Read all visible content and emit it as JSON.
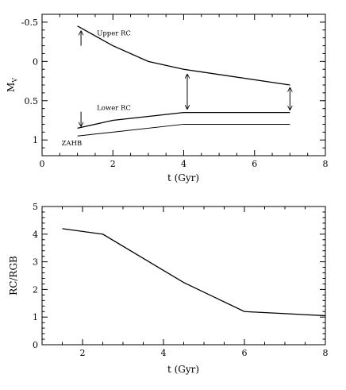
{
  "chart_data": [
    {
      "type": "line",
      "xlabel": "t (Gyr)",
      "ylabel": "M",
      "ylabel_sub": "V",
      "xlim": [
        0,
        8
      ],
      "ylim": [
        1.2,
        -0.6
      ],
      "y_inverted": true,
      "xticks": [
        0,
        2,
        4,
        6,
        8
      ],
      "xtick_labels": [
        "0",
        "2",
        "4",
        "6",
        "8"
      ],
      "yticks": [
        -0.5,
        0,
        0.5,
        1
      ],
      "ytick_labels": [
        "-0.5",
        "0",
        "0.5",
        "1"
      ],
      "series": [
        {
          "name": "Upper RC",
          "x": [
            1,
            2,
            3,
            4,
            7
          ],
          "y": [
            -0.45,
            -0.2,
            0.0,
            0.1,
            0.3
          ]
        },
        {
          "name": "Lower RC",
          "x": [
            1,
            2,
            4,
            7
          ],
          "y": [
            0.85,
            0.75,
            0.65,
            0.65
          ]
        },
        {
          "name": "ZAHB",
          "x": [
            1,
            2,
            4,
            7
          ],
          "y": [
            0.95,
            0.9,
            0.8,
            0.8
          ]
        }
      ],
      "annotations": [
        {
          "type": "arrow",
          "x": 1.1,
          "y1": -0.2,
          "y2": -0.38
        },
        {
          "type": "arrow",
          "x": 1.1,
          "y1": 0.64,
          "y2": 0.82
        },
        {
          "type": "double-arrow",
          "x": 4.1,
          "y1": 0.17,
          "y2": 0.6
        },
        {
          "type": "double-arrow",
          "x": 7.0,
          "y1": 0.34,
          "y2": 0.61
        }
      ],
      "grid": false
    },
    {
      "type": "line",
      "xlabel": "t (Gyr)",
      "ylabel": "RC/RGB",
      "xlim": [
        1,
        8
      ],
      "ylim": [
        0,
        5
      ],
      "xticks": [
        2,
        4,
        6,
        8
      ],
      "xtick_labels": [
        "2",
        "4",
        "6",
        "8"
      ],
      "yticks": [
        0,
        1,
        2,
        3,
        4,
        5
      ],
      "ytick_labels": [
        "0",
        "1",
        "2",
        "3",
        "4",
        "5"
      ],
      "series": [
        {
          "x": [
            1.5,
            2.5,
            4.5,
            6,
            8
          ],
          "y": [
            4.2,
            4.0,
            2.25,
            1.2,
            1.05
          ]
        }
      ],
      "grid": false
    }
  ]
}
